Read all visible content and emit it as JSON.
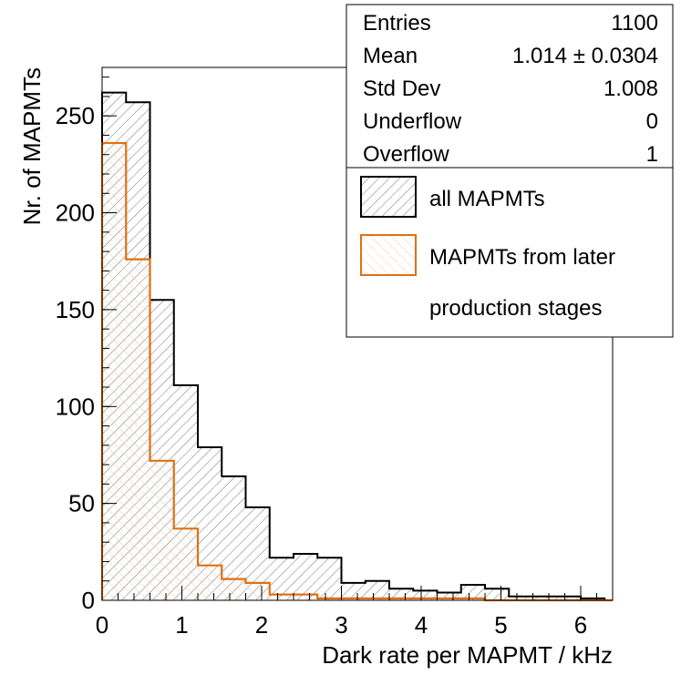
{
  "chart_data": {
    "type": "bar",
    "subtype": "histogram",
    "xlabel": "Dark rate per MAPMT / kHz",
    "ylabel": "Nr. of MAPMTs",
    "xlim": [
      0,
      6.4
    ],
    "ylim": [
      0,
      275
    ],
    "x_ticks": [
      "0",
      "1",
      "2",
      "3",
      "4",
      "5",
      "6"
    ],
    "y_ticks": [
      "0",
      "50",
      "100",
      "150",
      "200",
      "250"
    ],
    "bin_width": 0.3,
    "bin_edges": [
      0,
      0.3,
      0.6,
      0.9,
      1.2,
      1.5,
      1.8,
      2.1,
      2.4,
      2.7,
      3.0,
      3.3,
      3.6,
      3.9,
      4.2,
      4.5,
      4.8,
      5.1,
      5.4,
      5.7,
      6.0,
      6.3
    ],
    "series": [
      {
        "name": "all MAPMTs",
        "color": "#000000",
        "values": [
          262,
          257,
          155,
          111,
          79,
          64,
          48,
          22,
          24,
          22,
          9,
          10,
          6,
          5,
          4,
          8,
          6,
          2,
          2,
          2,
          1
        ]
      },
      {
        "name": "MAPMTs from later production stages",
        "color": "#e07010",
        "values": [
          236,
          176,
          72,
          37,
          18,
          11,
          9,
          3,
          3,
          1,
          1,
          1,
          1,
          1,
          1,
          1,
          0,
          0,
          0,
          0,
          0
        ]
      }
    ],
    "stats": [
      {
        "label": "Entries",
        "value": "1100"
      },
      {
        "label": "Mean",
        "value": "1.014 ± 0.0304"
      },
      {
        "label": "Std Dev",
        "value": "1.008"
      },
      {
        "label": "Underflow",
        "value": "0"
      },
      {
        "label": "Overflow",
        "value": "1"
      }
    ],
    "legend": [
      {
        "label": "all MAPMTs"
      },
      {
        "label": "MAPMTs from later",
        "label_cont": "production stages"
      }
    ],
    "legend_position": "top-right"
  }
}
